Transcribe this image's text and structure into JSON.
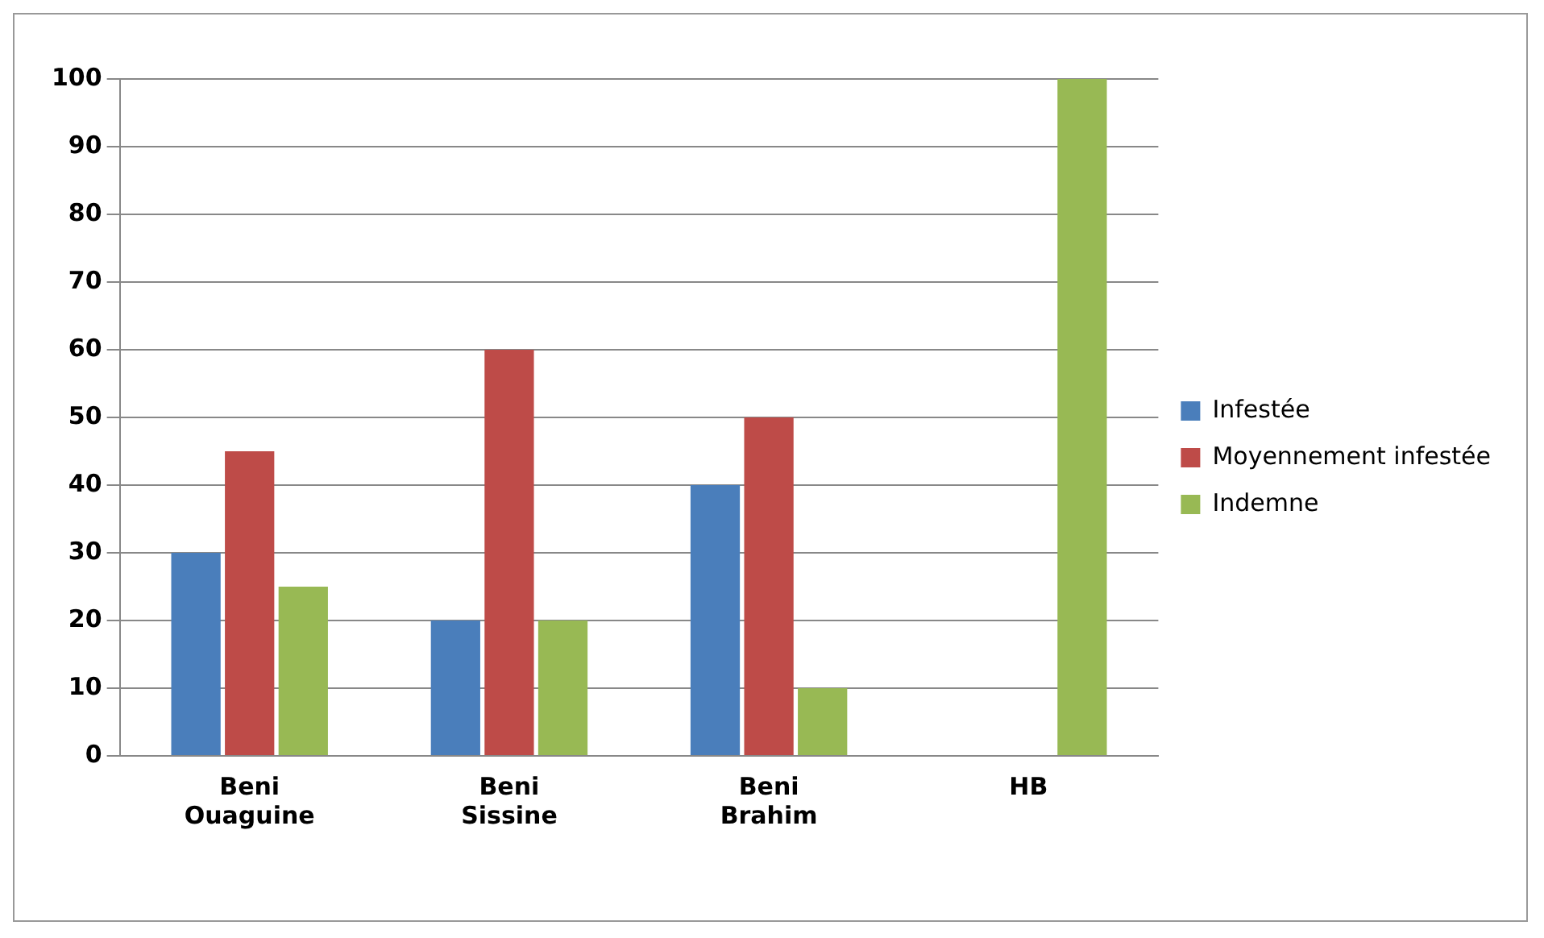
{
  "chart_data": {
    "type": "bar",
    "categories": [
      "Beni Ouaguine",
      "Beni Sissine",
      "Beni Brahim",
      "HB"
    ],
    "series": [
      {
        "name": "Infestée",
        "color": "#4a7ebb",
        "values": [
          30,
          20,
          40,
          0
        ]
      },
      {
        "name": "Moyennement infestée",
        "color": "#be4b48",
        "values": [
          45,
          60,
          50,
          0
        ]
      },
      {
        "name": "Indemne",
        "color": "#98b954",
        "values": [
          25,
          20,
          10,
          100
        ]
      }
    ],
    "ylim": [
      0,
      100
    ],
    "yticks": [
      0,
      10,
      20,
      30,
      40,
      50,
      60,
      70,
      80,
      90,
      100
    ],
    "grid": "y",
    "legend": "right"
  }
}
